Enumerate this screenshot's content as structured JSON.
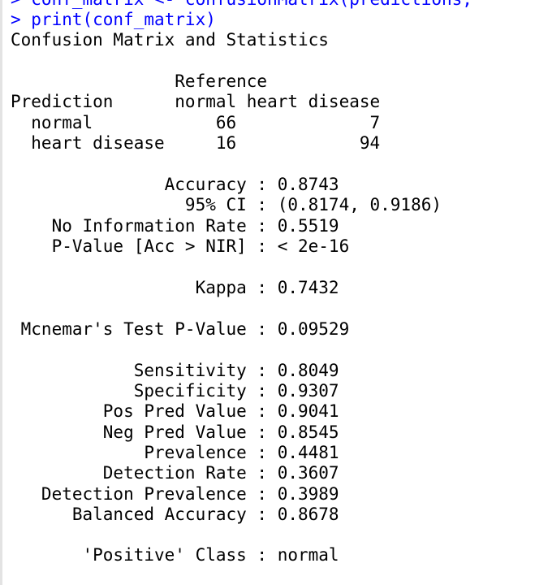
{
  "console": {
    "cut_command": "> conf_matrix <- confusionMatrix(predictions,",
    "command": "> print(conf_matrix)",
    "output_title": "Confusion Matrix and Statistics",
    "matrix": {
      "reference_header": "                Reference",
      "column_header": "Prediction      normal heart disease",
      "rows": [
        "  normal            66             7",
        "  heart disease     16            94"
      ]
    },
    "statistics": [
      "               Accuracy : 0.8743",
      "                 95% CI : (0.8174, 0.9186)",
      "    No Information Rate : 0.5519",
      "    P-Value [Acc > NIR] : < 2e-16",
      "                  Kappa : 0.7432",
      " Mcnemar's Test P-Value : 0.09529",
      "            Sensitivity : 0.8049",
      "            Specificity : 0.9307",
      "         Pos Pred Value : 0.9041",
      "         Neg Pred Value : 0.8545",
      "             Prevalence : 0.4481",
      "         Detection Rate : 0.3607",
      "   Detection Prevalence : 0.3989",
      "      Balanced Accuracy : 0.8678",
      "       'Positive' Class : normal"
    ]
  }
}
